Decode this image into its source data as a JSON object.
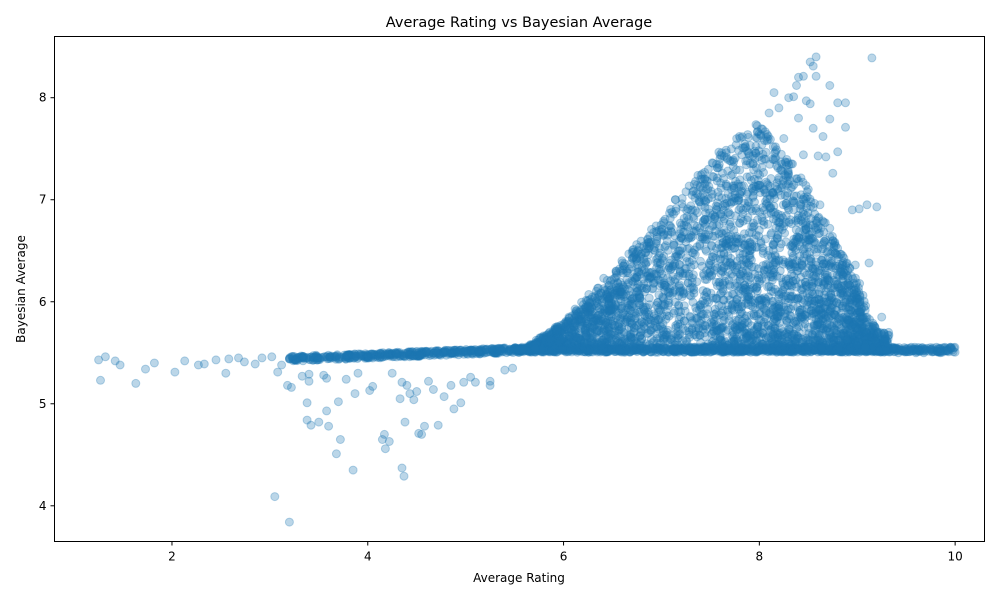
{
  "chart_data": {
    "type": "scatter",
    "title": "Average Rating vs Bayesian Average",
    "xlabel": "Average Rating",
    "ylabel": "Bayesian Average",
    "xlim": [
      0.8,
      10.3
    ],
    "ylim": [
      3.65,
      8.6
    ],
    "xticks": [
      2,
      4,
      6,
      8,
      10
    ],
    "yticks": [
      4,
      5,
      6,
      7,
      8
    ],
    "grid": false,
    "legend": "none",
    "marker_color": "#1f77b4",
    "marker_alpha": 0.3,
    "series": [
      {
        "points": [
          [
            1.25,
            5.43
          ],
          [
            1.27,
            5.23
          ],
          [
            1.32,
            5.46
          ],
          [
            1.42,
            5.42
          ],
          [
            1.47,
            5.38
          ],
          [
            1.63,
            5.2
          ],
          [
            1.73,
            5.34
          ],
          [
            1.82,
            5.4
          ],
          [
            2.03,
            5.31
          ],
          [
            2.13,
            5.42
          ],
          [
            2.27,
            5.38
          ],
          [
            2.33,
            5.39
          ],
          [
            2.45,
            5.43
          ],
          [
            2.55,
            5.3
          ],
          [
            2.58,
            5.44
          ],
          [
            2.68,
            5.45
          ],
          [
            2.74,
            5.41
          ],
          [
            2.85,
            5.39
          ],
          [
            2.92,
            5.45
          ],
          [
            3.02,
            5.46
          ],
          [
            3.08,
            5.31
          ],
          [
            3.12,
            5.38
          ],
          [
            3.18,
            5.18
          ],
          [
            3.22,
            5.16
          ],
          [
            3.23,
            5.46
          ],
          [
            3.33,
            5.27
          ],
          [
            3.4,
            5.22
          ],
          [
            3.4,
            5.29
          ],
          [
            3.55,
            5.28
          ],
          [
            3.58,
            5.25
          ],
          [
            3.78,
            5.24
          ],
          [
            3.87,
            5.1
          ],
          [
            3.9,
            5.3
          ],
          [
            4.02,
            5.13
          ],
          [
            4.05,
            5.17
          ],
          [
            4.25,
            5.3
          ],
          [
            4.33,
            5.05
          ],
          [
            4.35,
            5.21
          ],
          [
            4.4,
            5.18
          ],
          [
            4.43,
            5.1
          ],
          [
            4.47,
            5.04
          ],
          [
            4.5,
            5.12
          ],
          [
            4.62,
            5.22
          ],
          [
            4.67,
            5.14
          ],
          [
            4.78,
            5.07
          ],
          [
            4.85,
            5.18
          ],
          [
            4.88,
            4.95
          ],
          [
            4.95,
            5.01
          ],
          [
            4.98,
            5.21
          ],
          [
            5.05,
            5.26
          ],
          [
            5.1,
            5.21
          ],
          [
            5.25,
            5.22
          ],
          [
            5.25,
            5.18
          ],
          [
            5.4,
            5.33
          ],
          [
            5.48,
            5.35
          ],
          [
            3.05,
            4.09
          ],
          [
            3.2,
            3.84
          ],
          [
            3.38,
            5.01
          ],
          [
            3.38,
            4.84
          ],
          [
            3.42,
            4.79
          ],
          [
            3.5,
            4.82
          ],
          [
            3.58,
            4.93
          ],
          [
            3.6,
            4.78
          ],
          [
            3.68,
            4.51
          ],
          [
            3.7,
            5.02
          ],
          [
            3.72,
            4.65
          ],
          [
            3.85,
            4.35
          ],
          [
            4.15,
            4.65
          ],
          [
            4.17,
            4.7
          ],
          [
            4.18,
            4.56
          ],
          [
            4.22,
            4.63
          ],
          [
            4.35,
            4.37
          ],
          [
            4.37,
            4.29
          ],
          [
            4.38,
            4.82
          ],
          [
            4.52,
            4.71
          ],
          [
            4.55,
            4.7
          ],
          [
            4.58,
            4.78
          ],
          [
            4.72,
            4.79
          ],
          [
            8.58,
            8.4
          ],
          [
            9.15,
            8.39
          ],
          [
            8.52,
            8.35
          ],
          [
            8.55,
            8.31
          ],
          [
            8.4,
            8.2
          ],
          [
            8.45,
            8.21
          ],
          [
            8.58,
            8.21
          ],
          [
            8.72,
            8.12
          ],
          [
            8.38,
            8.12
          ],
          [
            8.35,
            8.01
          ],
          [
            8.48,
            7.97
          ],
          [
            8.8,
            7.95
          ],
          [
            8.88,
            7.95
          ],
          [
            8.52,
            7.94
          ],
          [
            8.4,
            7.8
          ],
          [
            8.72,
            7.79
          ],
          [
            8.88,
            7.71
          ],
          [
            8.55,
            7.7
          ],
          [
            8.65,
            7.62
          ],
          [
            8.8,
            7.47
          ],
          [
            8.68,
            7.42
          ],
          [
            8.6,
            7.43
          ],
          [
            8.45,
            7.44
          ],
          [
            8.75,
            7.26
          ],
          [
            8.4,
            7.18
          ],
          [
            8.5,
            7.1
          ],
          [
            8.62,
            6.95
          ],
          [
            8.72,
            6.72
          ],
          [
            8.95,
            6.9
          ],
          [
            9.02,
            6.91
          ],
          [
            9.1,
            6.95
          ],
          [
            9.2,
            6.93
          ],
          [
            8.55,
            6.75
          ],
          [
            8.65,
            6.52
          ],
          [
            8.85,
            6.45
          ],
          [
            8.98,
            6.36
          ],
          [
            9.12,
            6.38
          ],
          [
            8.7,
            6.22
          ],
          [
            8.88,
            6.16
          ],
          [
            8.55,
            6.32
          ],
          [
            8.68,
            6.1
          ],
          [
            8.82,
            5.98
          ],
          [
            8.95,
            5.85
          ],
          [
            9.05,
            5.78
          ],
          [
            9.25,
            5.85
          ],
          [
            9.32,
            5.7
          ],
          [
            9.12,
            5.65
          ],
          [
            9.18,
            5.62
          ],
          [
            8.78,
            5.72
          ],
          [
            8.9,
            5.62
          ],
          [
            9.0,
            5.57
          ],
          [
            9.08,
            5.55
          ],
          [
            9.3,
            5.52
          ],
          [
            9.38,
            5.54
          ],
          [
            9.42,
            5.5
          ],
          [
            9.48,
            5.51
          ],
          [
            9.52,
            5.53
          ],
          [
            9.6,
            5.5
          ],
          [
            9.68,
            5.5
          ],
          [
            9.85,
            5.5
          ],
          [
            8.2,
            7.9
          ],
          [
            8.1,
            7.85
          ],
          [
            8.15,
            8.05
          ],
          [
            8.3,
            8.0
          ],
          [
            8.25,
            7.6
          ],
          [
            8.05,
            7.4
          ],
          [
            7.95,
            7.2
          ],
          [
            8.15,
            7.05
          ],
          [
            8.3,
            6.9
          ],
          [
            8.0,
            6.7
          ],
          [
            7.9,
            6.5
          ],
          [
            8.2,
            6.4
          ],
          [
            8.35,
            6.25
          ],
          [
            8.1,
            6.15
          ],
          [
            7.85,
            6.05
          ],
          [
            8.25,
            5.95
          ],
          [
            8.4,
            5.85
          ],
          [
            8.05,
            5.8
          ],
          [
            7.75,
            5.75
          ],
          [
            8.5,
            5.75
          ],
          [
            8.6,
            5.65
          ],
          [
            8.3,
            5.6
          ],
          [
            7.6,
            5.65
          ],
          [
            7.4,
            5.6
          ]
        ]
      }
    ],
    "main_body": {
      "description": "dense cloud of roughly 20000 overlapping points",
      "flat_band": {
        "x_from": 3.2,
        "x_to": 10.0,
        "y_start": 5.44,
        "y_end": 5.53
      },
      "rising_front": [
        [
          5.6,
          5.53
        ],
        [
          6.0,
          5.8
        ],
        [
          6.4,
          6.2
        ],
        [
          6.8,
          6.6
        ],
        [
          7.2,
          7.05
        ],
        [
          7.5,
          7.4
        ],
        [
          7.75,
          7.6
        ],
        [
          8.0,
          7.8
        ]
      ],
      "upper_envelope": [
        [
          7.0,
          6.9
        ],
        [
          7.4,
          7.3
        ],
        [
          7.7,
          7.55
        ],
        [
          8.0,
          7.75
        ],
        [
          8.3,
          7.4
        ],
        [
          8.6,
          6.9
        ],
        [
          9.0,
          6.2
        ],
        [
          9.2,
          5.7
        ]
      ]
    }
  }
}
